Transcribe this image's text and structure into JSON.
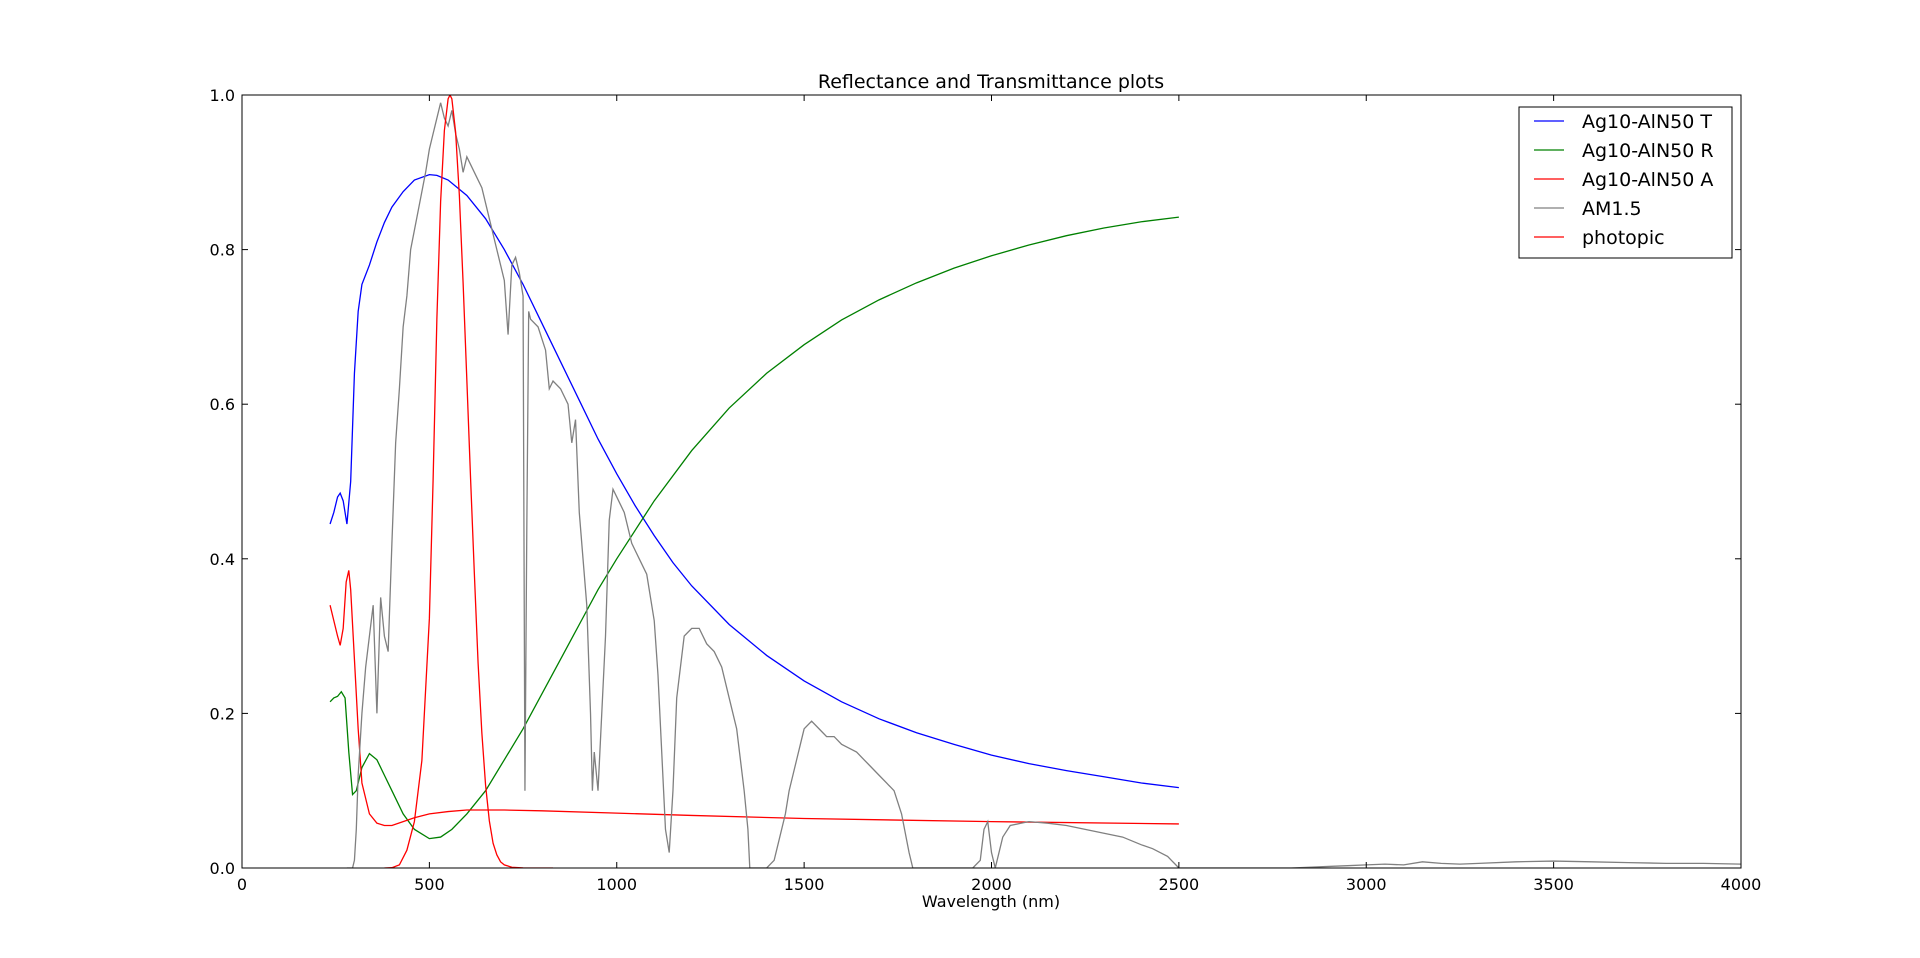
{
  "chart_data": {
    "type": "line",
    "title": "Reflectance and Transmittance plots",
    "xlabel": "Wavelength (nm)",
    "ylabel": "",
    "xlim": [
      0,
      4000
    ],
    "ylim": [
      0,
      1.0
    ],
    "x_ticks": [
      0,
      500,
      1000,
      1500,
      2000,
      2500,
      3000,
      3500,
      4000
    ],
    "y_ticks": [
      0.0,
      0.2,
      0.4,
      0.6,
      0.8,
      1.0
    ],
    "x_tick_labels": [
      "0",
      "500",
      "1000",
      "1500",
      "2000",
      "2500",
      "3000",
      "3500",
      "4000"
    ],
    "y_tick_labels": [
      "0.0",
      "0.2",
      "0.4",
      "0.6",
      "0.8",
      "1.0"
    ],
    "grid": false,
    "legend_position": "top-right",
    "series": [
      {
        "name": "Ag10-AlN50 T",
        "color": "#0000ff",
        "x": [
          235,
          245,
          255,
          262,
          270,
          280,
          290,
          300,
          310,
          320,
          340,
          360,
          380,
          400,
          430,
          460,
          500,
          520,
          550,
          600,
          650,
          700,
          750,
          800,
          850,
          900,
          950,
          1000,
          1050,
          1100,
          1150,
          1200,
          1300,
          1400,
          1500,
          1600,
          1700,
          1800,
          1900,
          2000,
          2100,
          2200,
          2300,
          2400,
          2500
        ],
        "y": [
          0.445,
          0.46,
          0.48,
          0.485,
          0.475,
          0.445,
          0.5,
          0.64,
          0.72,
          0.755,
          0.78,
          0.81,
          0.835,
          0.855,
          0.875,
          0.89,
          0.897,
          0.896,
          0.89,
          0.87,
          0.84,
          0.8,
          0.755,
          0.705,
          0.655,
          0.605,
          0.555,
          0.51,
          0.468,
          0.43,
          0.395,
          0.365,
          0.315,
          0.275,
          0.242,
          0.215,
          0.193,
          0.175,
          0.16,
          0.146,
          0.135,
          0.126,
          0.118,
          0.11,
          0.104
        ]
      },
      {
        "name": "Ag10-AlN50 R",
        "color": "#008000",
        "x": [
          235,
          245,
          255,
          265,
          275,
          285,
          295,
          305,
          320,
          340,
          360,
          380,
          400,
          430,
          460,
          500,
          530,
          560,
          600,
          650,
          700,
          750,
          800,
          850,
          900,
          950,
          1000,
          1100,
          1200,
          1300,
          1400,
          1500,
          1600,
          1700,
          1800,
          1900,
          2000,
          2100,
          2200,
          2300,
          2400,
          2500
        ],
        "y": [
          0.215,
          0.22,
          0.222,
          0.228,
          0.22,
          0.15,
          0.095,
          0.1,
          0.13,
          0.148,
          0.14,
          0.12,
          0.1,
          0.07,
          0.05,
          0.038,
          0.04,
          0.05,
          0.07,
          0.1,
          0.14,
          0.18,
          0.225,
          0.27,
          0.315,
          0.36,
          0.4,
          0.475,
          0.54,
          0.595,
          0.64,
          0.677,
          0.709,
          0.735,
          0.757,
          0.776,
          0.792,
          0.806,
          0.818,
          0.828,
          0.836,
          0.842
        ]
      },
      {
        "name": "Ag10-AlN50 A",
        "color": "#ff0000",
        "x": [
          235,
          245,
          255,
          262,
          270,
          278,
          285,
          290,
          300,
          310,
          320,
          340,
          360,
          380,
          400,
          430,
          460,
          500,
          550,
          600,
          700,
          800,
          1000,
          1200,
          1500,
          2000,
          2500
        ],
        "y": [
          0.34,
          0.32,
          0.3,
          0.288,
          0.31,
          0.37,
          0.385,
          0.36,
          0.27,
          0.18,
          0.11,
          0.07,
          0.058,
          0.055,
          0.055,
          0.06,
          0.065,
          0.07,
          0.073,
          0.075,
          0.075,
          0.074,
          0.071,
          0.068,
          0.064,
          0.06,
          0.057
        ]
      },
      {
        "name": "AM1.5",
        "color": "#808080",
        "x": [
          280,
          295,
          300,
          305,
          310,
          320,
          330,
          340,
          350,
          360,
          370,
          380,
          390,
          400,
          410,
          420,
          430,
          440,
          450,
          470,
          490,
          500,
          510,
          520,
          530,
          540,
          550,
          560,
          570,
          580,
          590,
          600,
          620,
          640,
          660,
          680,
          700,
          710,
          720,
          730,
          740,
          750,
          755,
          760,
          765,
          770,
          790,
          810,
          820,
          830,
          850,
          870,
          880,
          890,
          900,
          910,
          920,
          930,
          935,
          940,
          950,
          960,
          970,
          980,
          990,
          1000,
          1020,
          1040,
          1060,
          1080,
          1100,
          1110,
          1120,
          1130,
          1140,
          1150,
          1160,
          1180,
          1200,
          1220,
          1240,
          1260,
          1280,
          1300,
          1320,
          1340,
          1350,
          1355,
          1360,
          1400,
          1420,
          1430,
          1440,
          1450,
          1460,
          1470,
          1480,
          1490,
          1500,
          1520,
          1540,
          1560,
          1580,
          1600,
          1620,
          1640,
          1660,
          1680,
          1700,
          1720,
          1740,
          1760,
          1780,
          1790,
          1800,
          1820,
          1850,
          1900,
          1950,
          1970,
          1980,
          1990,
          2000,
          2010,
          2020,
          2030,
          2050,
          2080,
          2100,
          2150,
          2200,
          2250,
          2300,
          2350,
          2400,
          2430,
          2450,
          2470,
          2480,
          2490,
          2500,
          2600,
          2800,
          2900,
          2950,
          3000,
          3050,
          3100,
          3150,
          3200,
          3250,
          3300,
          3400,
          3500,
          3600,
          3700,
          3800,
          3900,
          4000
        ],
        "y": [
          0.0,
          0.0,
          0.01,
          0.05,
          0.12,
          0.2,
          0.26,
          0.3,
          0.34,
          0.2,
          0.35,
          0.3,
          0.28,
          0.42,
          0.55,
          0.62,
          0.7,
          0.74,
          0.8,
          0.85,
          0.9,
          0.93,
          0.95,
          0.97,
          0.99,
          0.97,
          0.96,
          0.98,
          0.95,
          0.93,
          0.9,
          0.92,
          0.9,
          0.88,
          0.84,
          0.8,
          0.76,
          0.69,
          0.78,
          0.79,
          0.77,
          0.74,
          0.1,
          0.44,
          0.72,
          0.71,
          0.7,
          0.67,
          0.62,
          0.63,
          0.62,
          0.6,
          0.55,
          0.58,
          0.46,
          0.4,
          0.34,
          0.2,
          0.1,
          0.15,
          0.1,
          0.2,
          0.3,
          0.45,
          0.49,
          0.48,
          0.46,
          0.42,
          0.4,
          0.38,
          0.32,
          0.25,
          0.15,
          0.05,
          0.02,
          0.1,
          0.22,
          0.3,
          0.31,
          0.31,
          0.29,
          0.28,
          0.26,
          0.22,
          0.18,
          0.1,
          0.05,
          0.0,
          0.0,
          0.0,
          0.01,
          0.03,
          0.05,
          0.07,
          0.1,
          0.12,
          0.14,
          0.16,
          0.18,
          0.19,
          0.18,
          0.17,
          0.17,
          0.16,
          0.155,
          0.15,
          0.14,
          0.13,
          0.12,
          0.11,
          0.1,
          0.07,
          0.02,
          0.0,
          0.0,
          0.0,
          0.0,
          0.0,
          0.0,
          0.01,
          0.05,
          0.06,
          0.02,
          0.0,
          0.02,
          0.04,
          0.055,
          0.058,
          0.06,
          0.058,
          0.055,
          0.05,
          0.045,
          0.04,
          0.03,
          0.025,
          0.02,
          0.015,
          0.01,
          0.005,
          0.0,
          0.0,
          0.0,
          0.002,
          0.003,
          0.004,
          0.005,
          0.004,
          0.008,
          0.006,
          0.005,
          0.006,
          0.008,
          0.009,
          0.008,
          0.007,
          0.006,
          0.006,
          0.005
        ]
      },
      {
        "name": "photopic",
        "color": "#ff0000",
        "x": [
          380,
          400,
          420,
          440,
          460,
          480,
          500,
          510,
          520,
          530,
          540,
          550,
          555,
          560,
          570,
          580,
          590,
          600,
          610,
          620,
          630,
          640,
          650,
          660,
          670,
          680,
          690,
          700,
          720,
          750,
          780,
          830
        ],
        "y": [
          0.0,
          0.0004,
          0.004,
          0.023,
          0.06,
          0.139,
          0.323,
          0.503,
          0.71,
          0.862,
          0.954,
          0.995,
          1.0,
          0.995,
          0.952,
          0.87,
          0.757,
          0.631,
          0.503,
          0.381,
          0.265,
          0.175,
          0.107,
          0.061,
          0.032,
          0.017,
          0.008,
          0.004,
          0.001,
          0.0001,
          0.0,
          0.0
        ]
      }
    ]
  }
}
